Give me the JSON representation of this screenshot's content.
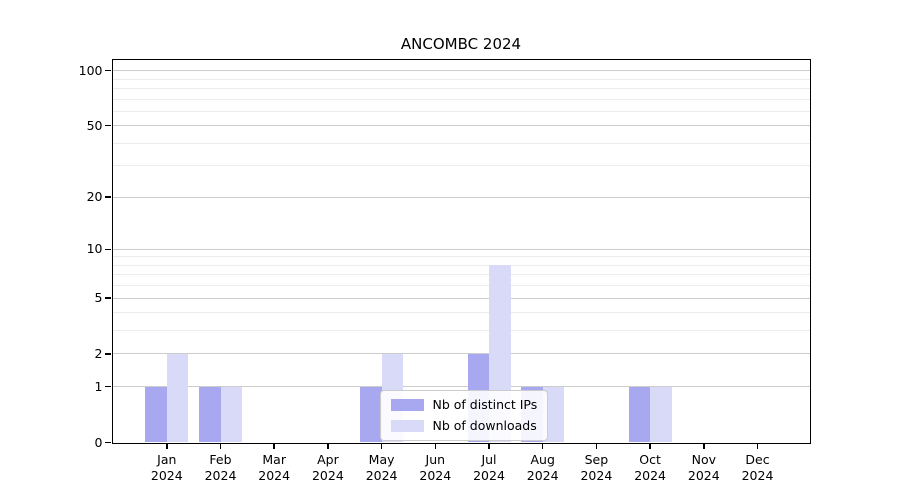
{
  "chart_data": {
    "type": "bar",
    "title": "ANCOMBC 2024",
    "xlabel": "",
    "ylabel": "",
    "yscale": "log1p",
    "grid": true,
    "legend_position": "lower center",
    "categories": [
      "Jan 2024",
      "Feb 2024",
      "Mar 2024",
      "Apr 2024",
      "May 2024",
      "Jun 2024",
      "Jul 2024",
      "Aug 2024",
      "Sep 2024",
      "Oct 2024",
      "Nov 2024",
      "Dec 2024"
    ],
    "series": [
      {
        "name": "Nb of distinct IPs",
        "color": "#a8a8f0",
        "values": [
          1,
          1,
          0,
          0,
          1,
          0,
          2,
          1,
          0,
          1,
          0,
          0
        ]
      },
      {
        "name": "Nb of downloads",
        "color": "#d9d9f8",
        "values": [
          2,
          1,
          0,
          0,
          2,
          0,
          8,
          1,
          0,
          1,
          0,
          0
        ]
      }
    ],
    "yticks": [
      0,
      1,
      2,
      5,
      10,
      20,
      50,
      100
    ],
    "minor_yticks": [
      3,
      4,
      6,
      7,
      8,
      9,
      30,
      40,
      60,
      70,
      80,
      90
    ],
    "ylim": [
      0,
      115
    ]
  },
  "colors": {
    "major_grid": "#cccccc",
    "minor_grid": "#ececec",
    "axis": "#000000",
    "text": "#000000",
    "legend_border": "#cccccc"
  }
}
